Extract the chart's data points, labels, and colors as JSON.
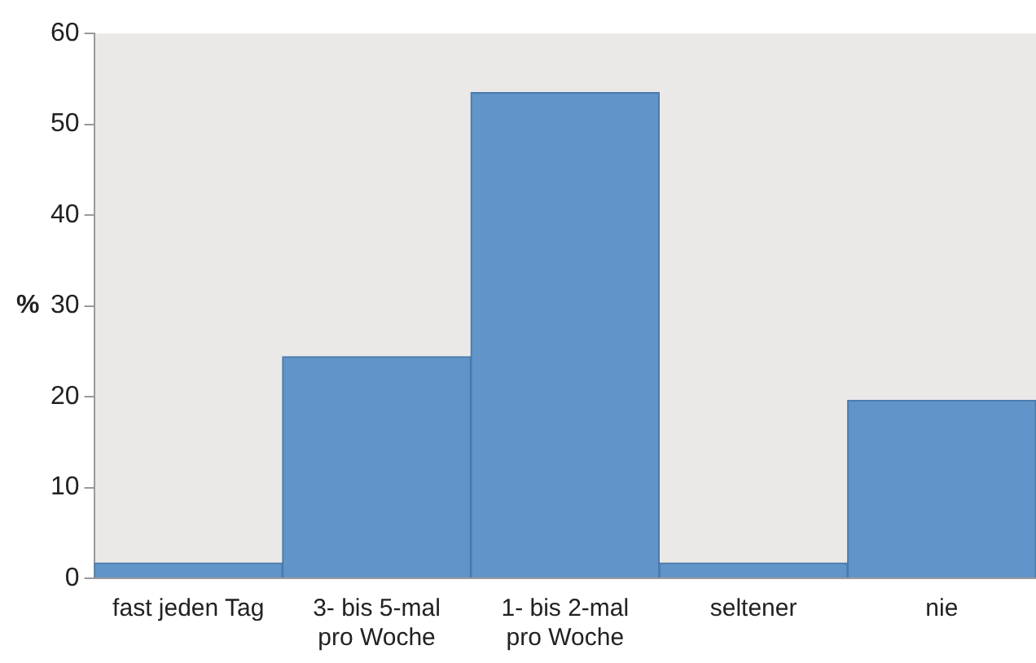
{
  "chart_data": {
    "type": "bar",
    "ylabel": "%",
    "categories": [
      "fast jeden Tag",
      "3- bis 5-mal\npro Woche",
      "1- bis 2-mal\npro Woche",
      "seltener",
      "nie"
    ],
    "values": [
      1.7,
      24.4,
      53.5,
      1.7,
      19.6
    ],
    "color": "#6194c8",
    "ylim": [
      0,
      60
    ],
    "yticks": [
      0,
      10,
      20,
      30,
      40,
      50,
      60
    ],
    "grid": false,
    "legend": false
  }
}
